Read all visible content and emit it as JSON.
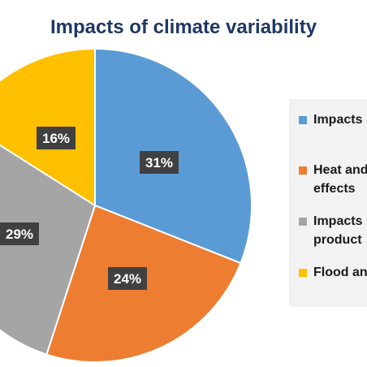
{
  "chart_data": {
    "type": "pie",
    "title": "Impacts of climate variability",
    "slices": [
      {
        "label": "31%",
        "value": 31,
        "color": "#5b9bd5"
      },
      {
        "label": "24%",
        "value": 24,
        "color": "#ed7d31"
      },
      {
        "label": "29%",
        "value": 29,
        "color": "#a5a5a5"
      },
      {
        "label": "16%",
        "value": 16,
        "color": "#ffc000"
      }
    ],
    "legend": {
      "placement": "right",
      "entries": [
        {
          "lines": [
            "Impacts"
          ],
          "color": "#5b9bd5"
        },
        {
          "lines": [
            "Heat and",
            "effects"
          ],
          "color": "#ed7d31"
        },
        {
          "lines": [
            "Impacts",
            "product"
          ],
          "color": "#a5a5a5"
        },
        {
          "lines": [
            "Flood an"
          ],
          "color": "#ffc000"
        }
      ]
    }
  }
}
